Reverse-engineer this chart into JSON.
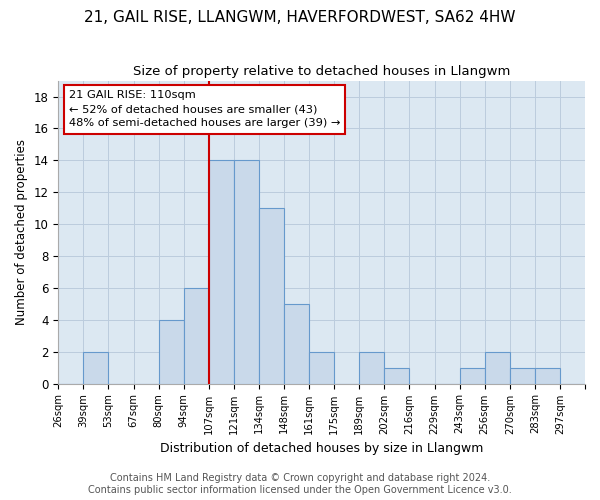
{
  "title": "21, GAIL RISE, LLANGWM, HAVERFORDWEST, SA62 4HW",
  "subtitle": "Size of property relative to detached houses in Llangwm",
  "xlabel": "Distribution of detached houses by size in Llangwm",
  "ylabel": "Number of detached properties",
  "bin_labels": [
    "26sqm",
    "39sqm",
    "53sqm",
    "67sqm",
    "80sqm",
    "94sqm",
    "107sqm",
    "121sqm",
    "134sqm",
    "148sqm",
    "161sqm",
    "175sqm",
    "189sqm",
    "202sqm",
    "216sqm",
    "229sqm",
    "243sqm",
    "256sqm",
    "270sqm",
    "283sqm",
    "297sqm"
  ],
  "bar_heights": [
    0,
    2,
    0,
    0,
    4,
    6,
    14,
    14,
    11,
    5,
    2,
    0,
    2,
    1,
    0,
    0,
    1,
    2,
    1,
    1,
    0
  ],
  "bar_color": "#c9d9ea",
  "bar_edgecolor": "#6699cc",
  "bar_linewidth": 0.8,
  "grid_color": "#bbccdd",
  "bg_color": "#dce8f2",
  "vline_color": "#cc0000",
  "annotation_text": "21 GAIL RISE: 110sqm\n← 52% of detached houses are smaller (43)\n48% of semi-detached houses are larger (39) →",
  "annotation_box_color": "#ffffff",
  "annotation_border_color": "#cc0000",
  "yticks": [
    0,
    2,
    4,
    6,
    8,
    10,
    12,
    14,
    16,
    18
  ],
  "ylim": [
    0,
    19
  ],
  "footer_line1": "Contains HM Land Registry data © Crown copyright and database right 2024.",
  "footer_line2": "Contains public sector information licensed under the Open Government Licence v3.0.",
  "title_fontsize": 11,
  "subtitle_fontsize": 9.5,
  "footer_fontsize": 7
}
